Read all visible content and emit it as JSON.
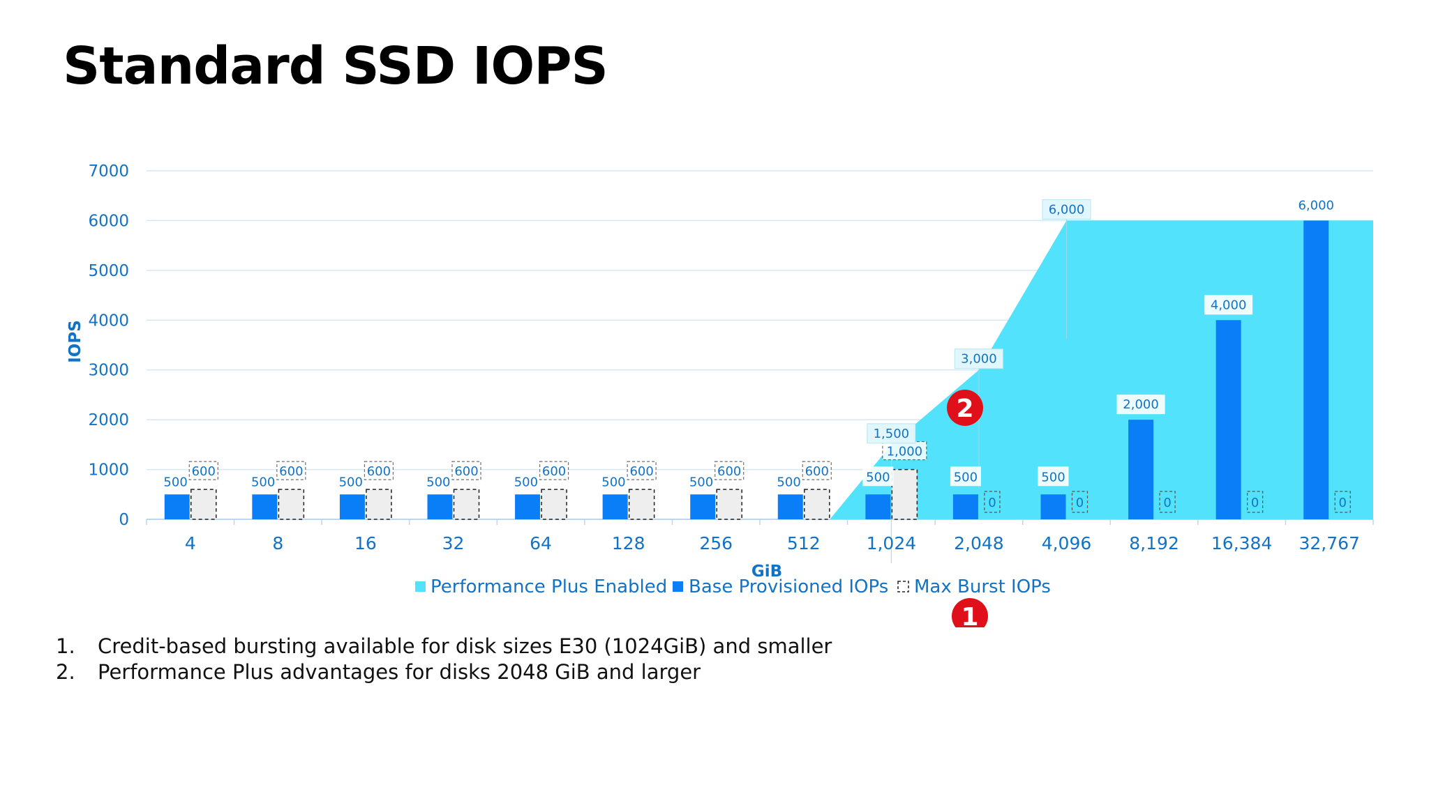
{
  "title": "Standard SSD IOPS",
  "colors": {
    "plus": "#52e2fb",
    "base": "#0a7ef7",
    "burst_fill": "#eeeeee",
    "burst_border": "#222222",
    "grid": "#d6e7f5",
    "label_blue": "#1273c6",
    "marker_red": "#e0101b"
  },
  "chart_data": {
    "type": "bar",
    "categories": [
      "4",
      "8",
      "16",
      "32",
      "64",
      "128",
      "256",
      "512",
      "1,024",
      "2,048",
      "4,096",
      "8,192",
      "16,384",
      "32,767"
    ],
    "series": [
      {
        "name": "Base Provisioned IOPs",
        "values": [
          500,
          500,
          500,
          500,
          500,
          500,
          500,
          500,
          500,
          500,
          500,
          2000,
          4000,
          6000
        ],
        "labels": [
          "500",
          "500",
          "500",
          "500",
          "500",
          "500",
          "500",
          "500",
          "500",
          "500",
          "500",
          "2,000",
          "4,000",
          "6,000"
        ]
      },
      {
        "name": "Max Burst IOPs",
        "values": [
          600,
          600,
          600,
          600,
          600,
          600,
          600,
          600,
          1000,
          0,
          0,
          0,
          0,
          0
        ],
        "labels": [
          "600",
          "600",
          "600",
          "600",
          "600",
          "600",
          "600",
          "600",
          "1,000",
          "0",
          "0",
          "0",
          "0",
          "0"
        ]
      },
      {
        "name": "Performance Plus Enabled",
        "type": "area",
        "points": [
          {
            "x": "512",
            "y": 0
          },
          {
            "x": "1,024",
            "y": 1500,
            "label": "1,500"
          },
          {
            "x": "2,048",
            "y": 3000,
            "label": "3,000"
          },
          {
            "x": "4,096",
            "y": 6000,
            "label": "6,000"
          },
          {
            "x": "32,767",
            "y": 6000
          }
        ]
      }
    ],
    "xlabel": "GiB",
    "ylabel": "IOPS",
    "ylim": [
      0,
      7000
    ],
    "yticks": [
      "0",
      "1000",
      "2000",
      "3000",
      "4000",
      "5000",
      "6000",
      "7000"
    ],
    "grid": true,
    "legend_position": "bottom",
    "markers": [
      {
        "text": "1",
        "near": "legend"
      },
      {
        "text": "2",
        "near": "performance-plus-area"
      }
    ]
  },
  "legend": {
    "plus": "Performance Plus Enabled",
    "base": "Base Provisioned IOPs",
    "burst": "Max Burst IOPs"
  },
  "notes": [
    {
      "num": "1.",
      "text": "Credit-based bursting available for disk sizes E30 (1024GiB) and smaller"
    },
    {
      "num": "2.",
      "text": "Performance Plus advantages for disks 2048 GiB and larger"
    }
  ]
}
